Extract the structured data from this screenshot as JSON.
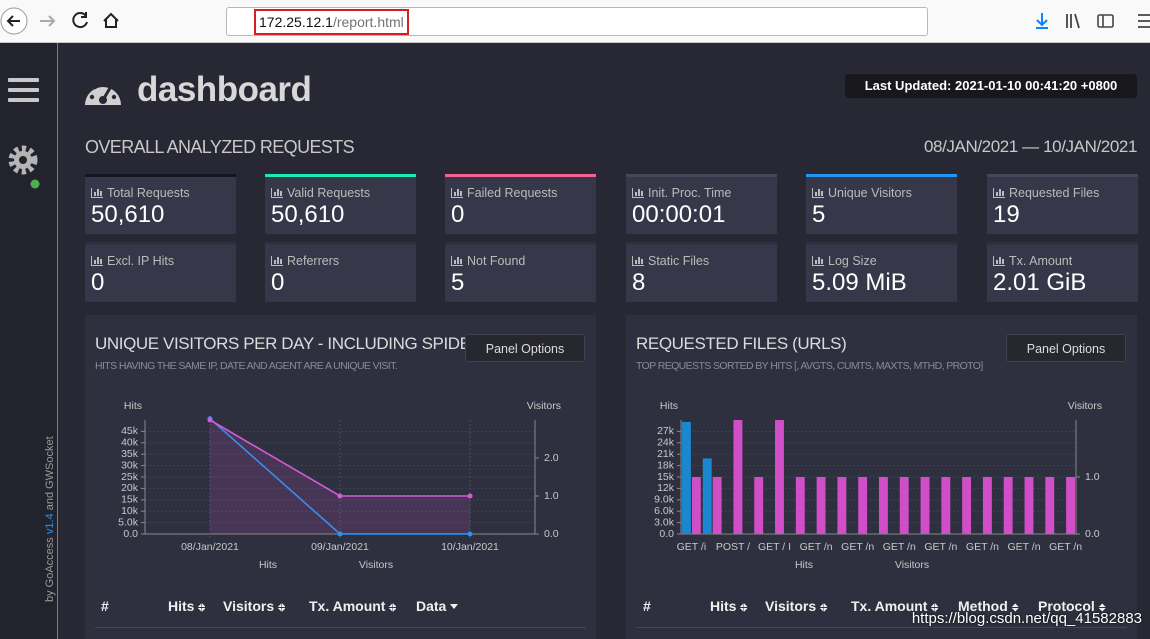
{
  "browser": {
    "url_host": "172.25.12.1",
    "url_path": "/report.html"
  },
  "sidebar": {
    "credit_prefix": "by GoAccess ",
    "version": "v1.4",
    "credit_suffix": " and GWSocket"
  },
  "header": {
    "title": "dashboard",
    "last_updated": "Last Updated: 2021-01-10 00:41:20 +0800"
  },
  "overall": {
    "title": "OVERALL ANALYZED REQUESTS",
    "date_range": "08/JAN/2021 — 10/JAN/2021"
  },
  "cards": [
    {
      "label": "Total Requests",
      "value": "50,610",
      "color": "#15161d"
    },
    {
      "label": "Valid Requests",
      "value": "50,610",
      "color": "#1de9b6"
    },
    {
      "label": "Failed Requests",
      "value": "0",
      "color": "#f06292"
    },
    {
      "label": "Init. Proc. Time",
      "value": "00:00:01",
      "color": "#44465a"
    },
    {
      "label": "Unique Visitors",
      "value": "5",
      "color": "#2196f3"
    },
    {
      "label": "Requested Files",
      "value": "19",
      "color": "#44465a"
    },
    {
      "label": "Excl. IP Hits",
      "value": "0"
    },
    {
      "label": "Referrers",
      "value": "0"
    },
    {
      "label": "Not Found",
      "value": "5"
    },
    {
      "label": "Static Files",
      "value": "8"
    },
    {
      "label": "Log Size",
      "value": "5.09 MiB"
    },
    {
      "label": "Tx. Amount",
      "value": "2.01 GiB"
    }
  ],
  "panels": [
    {
      "title": "UNIQUE VISITORS PER DAY - INCLUDING SPIDE",
      "subtitle": "HITS HAVING THE SAME IP, DATE AND AGENT ARE A UNIQUE VISIT.",
      "options": "Panel Options",
      "chart": {
        "type": "line",
        "y_label": "Hits",
        "y2_label": "Visitors",
        "categories": [
          "08/Jan/2021",
          "09/Jan/2021",
          "10/Jan/2021"
        ],
        "series": [
          {
            "name": "Hits",
            "color": "#2196f3",
            "values": [
              50580,
              20,
              10
            ]
          },
          {
            "name": "Visitors",
            "color": "#d55ad5",
            "axis": "y2",
            "values": [
              3,
              1,
              1
            ]
          }
        ],
        "ylim": [
          0,
          50000
        ],
        "yticks": [
          {
            "value": 0,
            "label": "0.0"
          },
          {
            "value": 5000,
            "label": "5.0k"
          },
          {
            "value": 10000,
            "label": "10k"
          },
          {
            "value": 15000,
            "label": "15k"
          },
          {
            "value": 20000,
            "label": "20k"
          },
          {
            "value": 25000,
            "label": "25k"
          },
          {
            "value": 30000,
            "label": "30k"
          },
          {
            "value": 35000,
            "label": "35k"
          },
          {
            "value": 40000,
            "label": "40k"
          },
          {
            "value": 45000,
            "label": "45k"
          }
        ],
        "y2lim": [
          0,
          3
        ],
        "y2ticks": [
          {
            "value": 0,
            "label": "0.0"
          },
          {
            "value": 1,
            "label": "1.0"
          },
          {
            "value": 2,
            "label": "2.0"
          }
        ]
      },
      "table_headers": [
        "#",
        "Hits",
        "Visitors",
        "Tx. Amount",
        "Data"
      ]
    },
    {
      "title": "REQUESTED FILES (URLS)",
      "subtitle": "TOP REQUESTS SORTED BY HITS [, AVGTS, CUMTS, MAXTS, MTHD, PROTO]",
      "options": "Panel Options",
      "chart": {
        "type": "bar",
        "y_label": "Hits",
        "y2_label": "Visitors",
        "categories": [
          "GET /i",
          null,
          "POST /",
          null,
          "GET / I",
          null,
          "GET /n",
          null,
          "GET /n",
          null,
          "GET /n",
          null,
          "GET /n",
          null,
          "GET /n",
          null,
          "GET /n",
          null,
          "GET /n"
        ],
        "series": [
          {
            "name": "Hits",
            "color": "#1a87d0",
            "values": [
              29500,
              19900,
              60,
              40,
              40,
              40,
              30,
              30,
              30,
              30,
              30,
              30,
              30,
              30,
              30,
              30,
              30,
              30,
              30
            ]
          },
          {
            "name": "Visitors",
            "color": "#d04ec8",
            "axis": "y2",
            "values": [
              1,
              1,
              2,
              1,
              2,
              1,
              1,
              1,
              1,
              1,
              1,
              1,
              1,
              1,
              1,
              1,
              1,
              1,
              1
            ]
          }
        ],
        "ylim": [
          0,
          30000
        ],
        "yticks": [
          {
            "value": 0,
            "label": "0.0"
          },
          {
            "value": 3000,
            "label": "3.0k"
          },
          {
            "value": 6000,
            "label": "6.0k"
          },
          {
            "value": 9000,
            "label": "9.0k"
          },
          {
            "value": 12000,
            "label": "12k"
          },
          {
            "value": 15000,
            "label": "15k"
          },
          {
            "value": 18000,
            "label": "18k"
          },
          {
            "value": 21000,
            "label": "21k"
          },
          {
            "value": 24000,
            "label": "24k"
          },
          {
            "value": 27000,
            "label": "27k"
          }
        ],
        "y2lim": [
          0,
          2
        ],
        "y2ticks": [
          {
            "value": 0,
            "label": "0.0"
          },
          {
            "value": 1,
            "label": "1.0"
          }
        ]
      },
      "table_headers": [
        "#",
        "Hits",
        "Visitors",
        "Tx. Amount",
        "Method",
        "Protocol"
      ]
    }
  ],
  "watermark": "https://blog.csdn.net/qq_41582883"
}
